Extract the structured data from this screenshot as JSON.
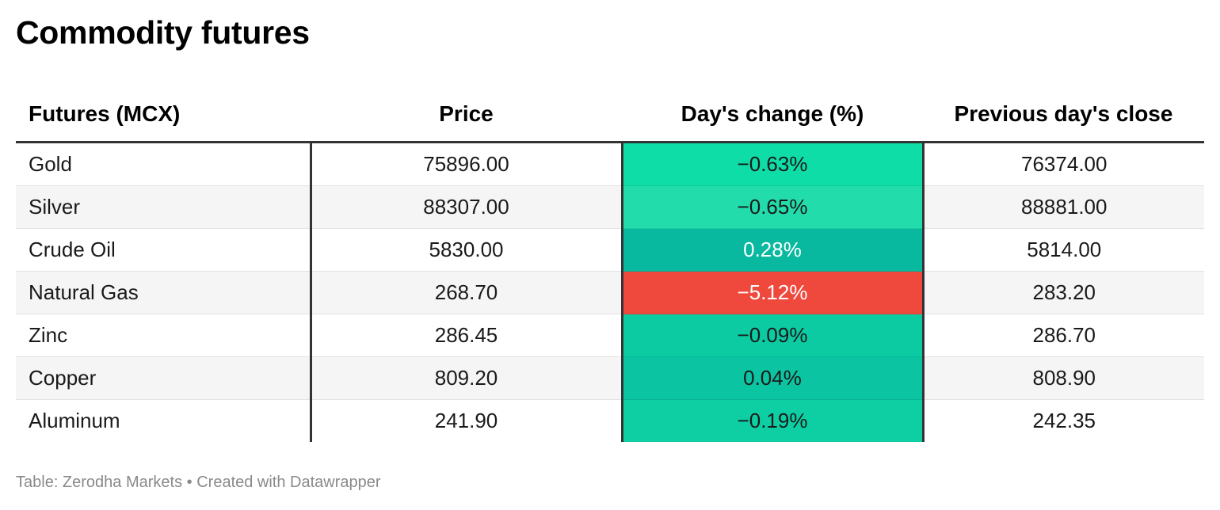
{
  "title": "Commodity futures",
  "footer": "Table: Zerodha Markets • Created with Datawrapper",
  "chart_data": {
    "type": "table",
    "title": "Commodity futures",
    "columns": [
      "Futures (MCX)",
      "Price",
      "Day's change (%)",
      "Previous day's close"
    ],
    "rows": [
      {
        "name": "Gold",
        "price": "75896.00",
        "change": "−0.63%",
        "change_value": -0.63,
        "prev_close": "76374.00",
        "change_color": "#0fdda7",
        "change_text_color": "#1a1a1a"
      },
      {
        "name": "Silver",
        "price": "88307.00",
        "change": "−0.65%",
        "change_value": -0.65,
        "prev_close": "88881.00",
        "change_color": "#22ddab",
        "change_text_color": "#1a1a1a"
      },
      {
        "name": "Crude Oil",
        "price": "5830.00",
        "change": "0.28%",
        "change_value": 0.28,
        "prev_close": "5814.00",
        "change_color": "#08b9a0",
        "change_text_color": "#ffffff"
      },
      {
        "name": "Natural Gas",
        "price": "268.70",
        "change": "−5.12%",
        "change_value": -5.12,
        "prev_close": "283.20",
        "change_color": "#ef483d",
        "change_text_color": "#ffffff"
      },
      {
        "name": "Zinc",
        "price": "286.45",
        "change": "−0.09%",
        "change_value": -0.09,
        "prev_close": "286.70",
        "change_color": "#0ccaa2",
        "change_text_color": "#1a1a1a"
      },
      {
        "name": "Copper",
        "price": "809.20",
        "change": "0.04%",
        "change_value": 0.04,
        "prev_close": "808.90",
        "change_color": "#0bc4a1",
        "change_text_color": "#1a1a1a"
      },
      {
        "name": "Aluminum",
        "price": "241.90",
        "change": "−0.19%",
        "change_value": -0.19,
        "prev_close": "242.35",
        "change_color": "#0dcfa3",
        "change_text_color": "#1a1a1a"
      }
    ]
  }
}
